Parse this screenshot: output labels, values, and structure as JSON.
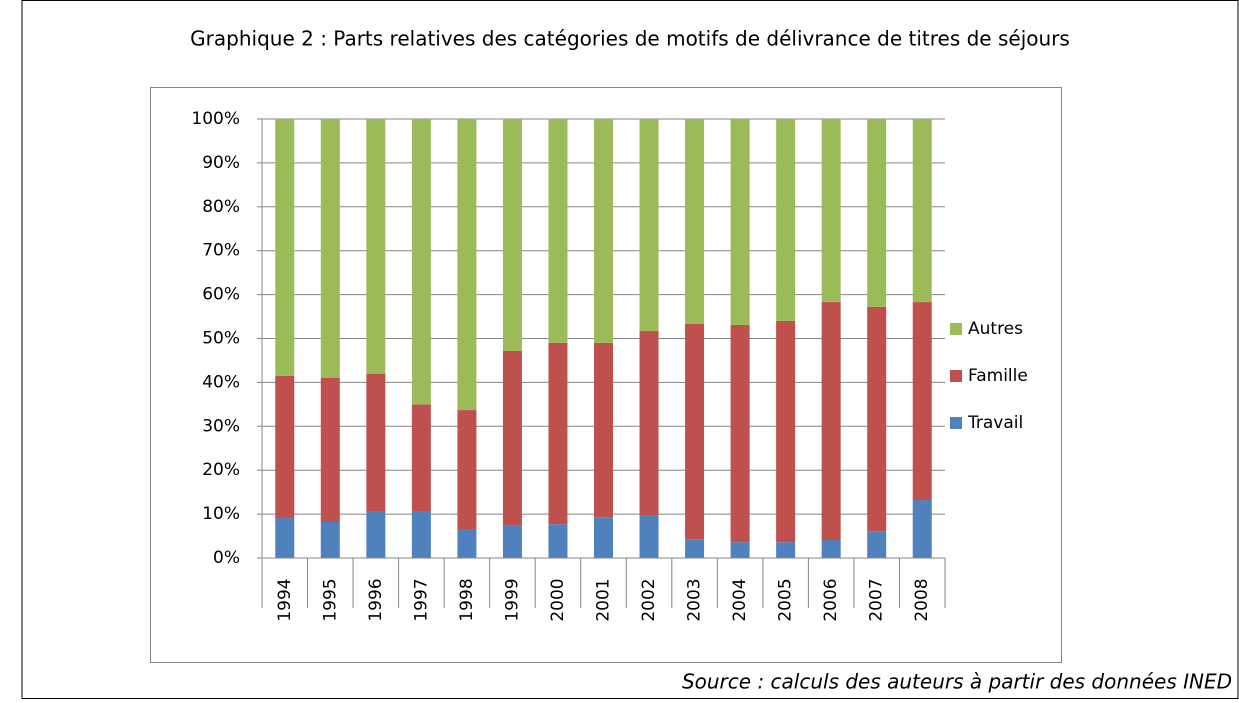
{
  "chart_data": {
    "type": "stacked_bar_percent",
    "title": "Graphique 2 : Parts relatives des catégories de motifs de délivrance de titres de séjours",
    "source": "Source : calculs des auteurs à partir des données INED",
    "categories": [
      "1994",
      "1995",
      "1996",
      "1997",
      "1998",
      "1999",
      "2000",
      "2001",
      "2002",
      "2003",
      "2004",
      "2005",
      "2006",
      "2007",
      "2008"
    ],
    "series": [
      {
        "name": "Travail",
        "color": "#4f81bd",
        "values": [
          9.1,
          8.2,
          10.5,
          10.5,
          6.6,
          7.5,
          7.7,
          9.3,
          9.6,
          4.3,
          3.6,
          3.6,
          4.1,
          6.1,
          13.2
        ]
      },
      {
        "name": "Famille",
        "color": "#c0504d",
        "values": [
          32.4,
          32.8,
          31.5,
          24.5,
          27.1,
          39.7,
          41.3,
          39.7,
          42.1,
          49.0,
          49.5,
          50.4,
          54.2,
          51.1,
          45.1
        ]
      },
      {
        "name": "Autres",
        "color": "#9bbb59",
        "values": [
          58.5,
          59.0,
          58.0,
          65.0,
          66.3,
          52.8,
          51.0,
          51.0,
          48.3,
          46.7,
          46.9,
          46.0,
          41.7,
          42.8,
          41.7
        ]
      }
    ],
    "ylim": [
      0,
      100
    ],
    "yticks": [
      {
        "value": 0,
        "label": "0%"
      },
      {
        "value": 10,
        "label": "10%"
      },
      {
        "value": 20,
        "label": "20%"
      },
      {
        "value": 30,
        "label": "30%"
      },
      {
        "value": 40,
        "label": "40%"
      },
      {
        "value": 50,
        "label": "50%"
      },
      {
        "value": 60,
        "label": "60%"
      },
      {
        "value": 70,
        "label": "70%"
      },
      {
        "value": 80,
        "label": "80%"
      },
      {
        "value": 90,
        "label": "90%"
      },
      {
        "value": 100,
        "label": "100%"
      }
    ],
    "grid": true,
    "legend": "right"
  }
}
